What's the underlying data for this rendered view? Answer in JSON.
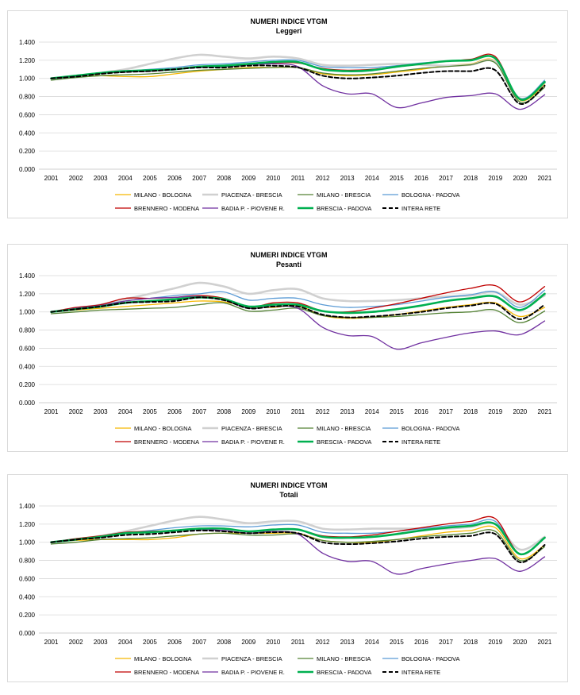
{
  "chart_data": [
    {
      "type": "line",
      "title": "NUMERI INDICE VTGM",
      "subtitle": "Leggeri",
      "x": [
        "2001",
        "2002",
        "2003",
        "2004",
        "2005",
        "2006",
        "2007",
        "2008",
        "2009",
        "2010",
        "2011",
        "2012",
        "2013",
        "2014",
        "2015",
        "2016",
        "2017",
        "2018",
        "2019",
        "2020",
        "2021"
      ],
      "ylim": [
        0,
        1.4
      ],
      "yticks": [
        "0.000",
        "0.200",
        "0.400",
        "0.600",
        "0.800",
        "1.000",
        "1.200",
        "1.400"
      ],
      "grid": true,
      "legend_position": "bottom",
      "series": [
        {
          "name": "MILANO - BOLOGNA",
          "color": "#f5b800",
          "width": 1.3,
          "dash": "",
          "values": [
            1.0,
            1.02,
            1.03,
            1.02,
            1.02,
            1.05,
            1.08,
            1.1,
            1.12,
            1.12,
            1.12,
            1.05,
            1.03,
            1.04,
            1.07,
            1.1,
            1.14,
            1.16,
            1.19,
            0.76,
            0.93
          ]
        },
        {
          "name": "PIACENZA - BRESCIA",
          "color": "#d0d0d0",
          "width": 2.6,
          "dash": "",
          "values": [
            1.0,
            1.02,
            1.06,
            1.1,
            1.16,
            1.22,
            1.26,
            1.24,
            1.22,
            1.24,
            1.22,
            1.15,
            1.14,
            1.15,
            1.16,
            1.15,
            1.14,
            1.15,
            1.18,
            0.78,
            0.95
          ]
        },
        {
          "name": "MILANO - BRESCIA",
          "color": "#548235",
          "width": 1.3,
          "dash": "",
          "values": [
            0.98,
            1.01,
            1.03,
            1.04,
            1.05,
            1.07,
            1.09,
            1.1,
            1.11,
            1.12,
            1.12,
            1.06,
            1.04,
            1.05,
            1.08,
            1.11,
            1.13,
            1.15,
            1.17,
            0.74,
            0.9
          ]
        },
        {
          "name": "BOLOGNA - PADOVA",
          "color": "#5b9bd5",
          "width": 1.3,
          "dash": "",
          "values": [
            1.0,
            1.03,
            1.06,
            1.08,
            1.1,
            1.12,
            1.15,
            1.16,
            1.18,
            1.2,
            1.2,
            1.13,
            1.12,
            1.12,
            1.14,
            1.17,
            1.19,
            1.2,
            1.22,
            0.78,
            0.98
          ]
        },
        {
          "name": "BRENNERO - MODENA",
          "color": "#c00000",
          "width": 1.3,
          "dash": "",
          "values": [
            1.0,
            1.03,
            1.06,
            1.07,
            1.08,
            1.1,
            1.13,
            1.13,
            1.15,
            1.17,
            1.17,
            1.11,
            1.09,
            1.1,
            1.13,
            1.16,
            1.19,
            1.21,
            1.24,
            0.77,
            0.96
          ]
        },
        {
          "name": "BADIA P. - PIOVENE R.",
          "color": "#7030a0",
          "width": 1.3,
          "dash": "",
          "values": [
            1.0,
            1.03,
            1.06,
            1.07,
            1.08,
            1.1,
            1.12,
            1.13,
            1.15,
            1.16,
            1.13,
            0.92,
            0.83,
            0.83,
            0.68,
            0.73,
            0.79,
            0.81,
            0.83,
            0.66,
            0.82
          ]
        },
        {
          "name": "BRESCIA - PADOVA",
          "color": "#00b050",
          "width": 2.6,
          "dash": "",
          "values": [
            1.0,
            1.03,
            1.06,
            1.08,
            1.09,
            1.1,
            1.13,
            1.14,
            1.16,
            1.18,
            1.18,
            1.1,
            1.08,
            1.09,
            1.13,
            1.16,
            1.19,
            1.2,
            1.22,
            0.77,
            0.96
          ]
        },
        {
          "name": "INTERA RETE",
          "color": "#000000",
          "width": 2.0,
          "dash": "5,3",
          "values": [
            1.0,
            1.02,
            1.05,
            1.07,
            1.08,
            1.1,
            1.12,
            1.12,
            1.14,
            1.14,
            1.12,
            1.03,
            1.0,
            1.01,
            1.03,
            1.06,
            1.08,
            1.08,
            1.09,
            0.72,
            0.92
          ]
        }
      ]
    },
    {
      "type": "line",
      "title": "NUMERI INDICE VTGM",
      "subtitle": "Pesanti",
      "x": [
        "2001",
        "2002",
        "2003",
        "2004",
        "2005",
        "2006",
        "2007",
        "2008",
        "2009",
        "2010",
        "2011",
        "2012",
        "2013",
        "2014",
        "2015",
        "2016",
        "2017",
        "2018",
        "2019",
        "2020",
        "2021"
      ],
      "ylim": [
        0,
        1.4
      ],
      "yticks": [
        "0.000",
        "0.200",
        "0.400",
        "0.600",
        "0.800",
        "1.000",
        "1.200",
        "1.400"
      ],
      "grid": true,
      "legend_position": "bottom",
      "series": [
        {
          "name": "MILANO - BOLOGNA",
          "color": "#f5b800",
          "width": 1.3,
          "dash": "",
          "values": [
            1.0,
            1.02,
            1.04,
            1.06,
            1.08,
            1.1,
            1.12,
            1.11,
            1.06,
            1.05,
            1.07,
            0.96,
            0.93,
            0.94,
            0.97,
            1.01,
            1.05,
            1.08,
            1.1,
            0.95,
            1.05
          ]
        },
        {
          "name": "PIACENZA - BRESCIA",
          "color": "#d0d0d0",
          "width": 2.6,
          "dash": "",
          "values": [
            1.0,
            1.04,
            1.08,
            1.14,
            1.2,
            1.26,
            1.32,
            1.28,
            1.2,
            1.24,
            1.25,
            1.15,
            1.12,
            1.12,
            1.13,
            1.15,
            1.17,
            1.18,
            1.22,
            1.08,
            1.18
          ]
        },
        {
          "name": "MILANO - BRESCIA",
          "color": "#548235",
          "width": 1.3,
          "dash": "",
          "values": [
            0.98,
            1.0,
            1.02,
            1.03,
            1.04,
            1.05,
            1.08,
            1.1,
            1.01,
            1.02,
            1.04,
            0.96,
            0.94,
            0.94,
            0.95,
            0.97,
            0.99,
            1.0,
            1.02,
            0.88,
            1.01
          ]
        },
        {
          "name": "BOLOGNA - PADOVA",
          "color": "#5b9bd5",
          "width": 1.3,
          "dash": "",
          "values": [
            1.0,
            1.03,
            1.07,
            1.12,
            1.15,
            1.18,
            1.2,
            1.22,
            1.13,
            1.15,
            1.15,
            1.08,
            1.05,
            1.06,
            1.08,
            1.12,
            1.16,
            1.19,
            1.22,
            1.05,
            1.24
          ]
        },
        {
          "name": "BRENNERO - MODENA",
          "color": "#c00000",
          "width": 1.3,
          "dash": "",
          "values": [
            1.0,
            1.05,
            1.08,
            1.15,
            1.15,
            1.16,
            1.18,
            1.15,
            1.05,
            1.1,
            1.1,
            1.01,
            1.0,
            1.04,
            1.09,
            1.15,
            1.21,
            1.26,
            1.29,
            1.11,
            1.28
          ]
        },
        {
          "name": "BADIA P. - PIOVENE R.",
          "color": "#7030a0",
          "width": 1.3,
          "dash": "",
          "values": [
            1.0,
            1.04,
            1.07,
            1.12,
            1.15,
            1.16,
            1.17,
            1.13,
            1.04,
            1.06,
            1.04,
            0.83,
            0.74,
            0.73,
            0.59,
            0.66,
            0.72,
            0.77,
            0.79,
            0.75,
            0.9
          ]
        },
        {
          "name": "BRESCIA - PADOVA",
          "color": "#00b050",
          "width": 2.6,
          "dash": "",
          "values": [
            1.0,
            1.03,
            1.06,
            1.1,
            1.12,
            1.14,
            1.16,
            1.14,
            1.06,
            1.08,
            1.08,
            1.01,
            0.99,
            1.0,
            1.03,
            1.07,
            1.12,
            1.15,
            1.17,
            1.02,
            1.2
          ]
        },
        {
          "name": "INTERA RETE",
          "color": "#000000",
          "width": 2.0,
          "dash": "5,3",
          "values": [
            1.0,
            1.03,
            1.06,
            1.1,
            1.11,
            1.12,
            1.16,
            1.13,
            1.04,
            1.06,
            1.06,
            0.97,
            0.94,
            0.95,
            0.97,
            1.0,
            1.04,
            1.07,
            1.09,
            0.92,
            1.08
          ]
        }
      ]
    },
    {
      "type": "line",
      "title": "NUMERI INDICE VTGM",
      "subtitle": "Totali",
      "x": [
        "2001",
        "2002",
        "2003",
        "2004",
        "2005",
        "2006",
        "2007",
        "2008",
        "2009",
        "2010",
        "2011",
        "2012",
        "2013",
        "2014",
        "2015",
        "2016",
        "2017",
        "2018",
        "2019",
        "2020",
        "2021"
      ],
      "ylim": [
        0,
        1.4
      ],
      "yticks": [
        "0.000",
        "0.200",
        "0.400",
        "0.600",
        "0.800",
        "1.000",
        "1.200",
        "1.400"
      ],
      "grid": true,
      "legend_position": "bottom",
      "series": [
        {
          "name": "MILANO - BOLOGNA",
          "color": "#f5b800",
          "width": 1.3,
          "dash": "",
          "values": [
            1.0,
            1.02,
            1.03,
            1.03,
            1.03,
            1.05,
            1.09,
            1.1,
            1.1,
            1.1,
            1.1,
            1.02,
            1.0,
            1.0,
            1.03,
            1.07,
            1.11,
            1.13,
            1.16,
            0.82,
            0.97
          ]
        },
        {
          "name": "PIACENZA - BRESCIA",
          "color": "#d0d0d0",
          "width": 2.6,
          "dash": "",
          "values": [
            1.0,
            1.03,
            1.07,
            1.12,
            1.18,
            1.24,
            1.28,
            1.25,
            1.21,
            1.23,
            1.23,
            1.15,
            1.14,
            1.15,
            1.15,
            1.15,
            1.15,
            1.17,
            1.2,
            0.92,
            1.06
          ]
        },
        {
          "name": "MILANO - BRESCIA",
          "color": "#548235",
          "width": 1.3,
          "dash": "",
          "values": [
            0.98,
            1.0,
            1.03,
            1.04,
            1.05,
            1.07,
            1.09,
            1.1,
            1.08,
            1.08,
            1.09,
            1.02,
            1.0,
            1.01,
            1.03,
            1.06,
            1.08,
            1.1,
            1.12,
            0.8,
            0.95
          ]
        },
        {
          "name": "BOLOGNA - PADOVA",
          "color": "#5b9bd5",
          "width": 1.3,
          "dash": "",
          "values": [
            1.0,
            1.03,
            1.06,
            1.1,
            1.13,
            1.16,
            1.18,
            1.18,
            1.17,
            1.19,
            1.19,
            1.11,
            1.1,
            1.1,
            1.12,
            1.15,
            1.18,
            1.2,
            1.23,
            0.87,
            1.05
          ]
        },
        {
          "name": "BRENNERO - MODENA",
          "color": "#c00000",
          "width": 1.3,
          "dash": "",
          "values": [
            1.0,
            1.04,
            1.07,
            1.11,
            1.12,
            1.13,
            1.15,
            1.15,
            1.12,
            1.14,
            1.14,
            1.07,
            1.06,
            1.08,
            1.12,
            1.16,
            1.2,
            1.23,
            1.26,
            0.87,
            1.05
          ]
        },
        {
          "name": "BADIA P. - PIOVENE R.",
          "color": "#7030a0",
          "width": 1.3,
          "dash": "",
          "values": [
            1.0,
            1.03,
            1.06,
            1.1,
            1.11,
            1.13,
            1.14,
            1.13,
            1.1,
            1.12,
            1.09,
            0.88,
            0.79,
            0.79,
            0.65,
            0.71,
            0.76,
            0.8,
            0.82,
            0.68,
            0.84
          ]
        },
        {
          "name": "BRESCIA - PADOVA",
          "color": "#00b050",
          "width": 2.6,
          "dash": "",
          "values": [
            1.0,
            1.03,
            1.06,
            1.1,
            1.11,
            1.13,
            1.15,
            1.15,
            1.12,
            1.14,
            1.14,
            1.06,
            1.05,
            1.06,
            1.09,
            1.13,
            1.16,
            1.18,
            1.2,
            0.87,
            1.05
          ]
        },
        {
          "name": "INTERA RETE",
          "color": "#000000",
          "width": 2.0,
          "dash": "5,3",
          "values": [
            1.0,
            1.03,
            1.05,
            1.08,
            1.09,
            1.11,
            1.13,
            1.12,
            1.1,
            1.11,
            1.1,
            1.0,
            0.98,
            0.99,
            1.01,
            1.04,
            1.06,
            1.07,
            1.09,
            0.78,
            0.97
          ]
        }
      ]
    }
  ]
}
